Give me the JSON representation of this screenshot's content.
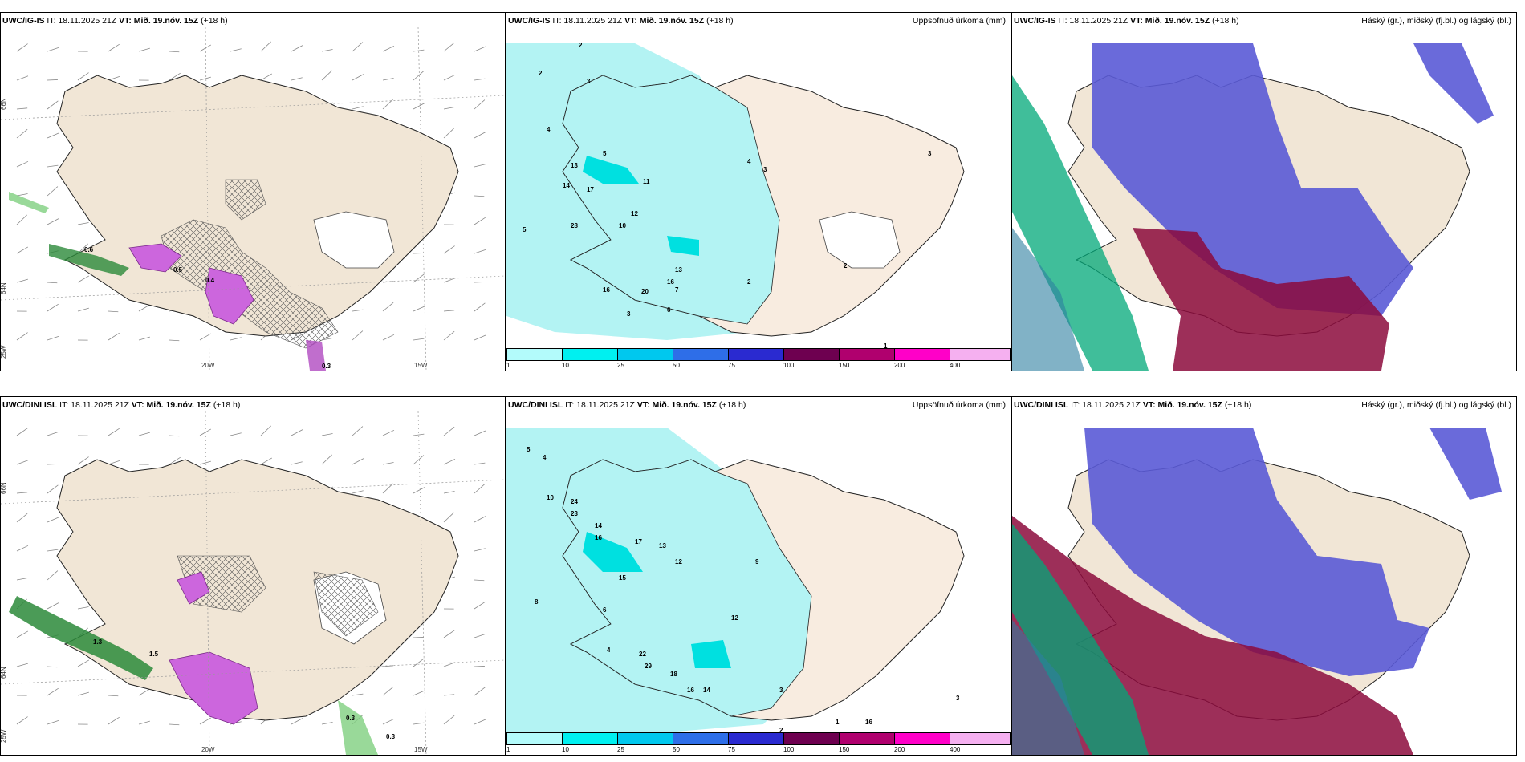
{
  "rows": [
    {
      "wind_panel": {
        "model": "UWC/IG-IS",
        "it": "IT: 18.11.2025 21Z",
        "vt_label": "VT: Mið. 19.nóv. 15Z",
        "lead": "(+18 h)"
      },
      "precip_panel": {
        "model": "UWC/IG-IS",
        "it": "IT: 18.11.2025 21Z",
        "vt_label": "VT: Mið. 19.nóv. 15Z",
        "lead": "(+18 h)",
        "right_title": "Uppsöfnuð úrkoma (mm)"
      },
      "cloud_panel": {
        "model": "UWC/IG-IS",
        "it": "IT: 18.11.2025 21Z",
        "vt_label": "VT: Mið. 19.nóv. 15Z",
        "lead": "(+18 h)",
        "right_title": "Háský (gr.), miðský (fj.bl.) og lágský (bl.)"
      },
      "wind_values": [
        "0.6",
        "0.4",
        "0.5",
        "0.3"
      ]
    },
    {
      "wind_panel": {
        "model": "UWC/DINI ISL",
        "it": "IT: 18.11.2025 21Z",
        "vt_label": "VT: Mið. 19.nóv. 15Z",
        "lead": "(+18 h)"
      },
      "precip_panel": {
        "model": "UWC/DINI ISL",
        "it": "IT: 18.11.2025 21Z",
        "vt_label": "VT: Mið. 19.nóv. 15Z",
        "lead": "(+18 h)",
        "right_title": "Uppsöfnuð úrkoma (mm)"
      },
      "cloud_panel": {
        "model": "UWC/DINI ISL",
        "it": "IT: 18.11.2025 21Z",
        "vt_label": "VT: Mið. 19.nóv. 15Z",
        "lead": "(+18 h)",
        "right_title": "Háský (gr.), miðský (fj.bl.) og lágský (bl.)"
      },
      "wind_values": [
        "1.3",
        "1.5",
        "0.3",
        "0.3"
      ]
    }
  ],
  "axis_labels": {
    "lat66": "66N",
    "lat64": "64N",
    "lon20": "20W",
    "lon15": "15W",
    "lon25": "25W"
  },
  "colorbar": {
    "ticks": [
      "1",
      "10",
      "25",
      "50",
      "75",
      "100",
      "150",
      "200",
      "400"
    ],
    "colors": [
      "#b3fbfb",
      "#00f0f0",
      "#00c8ee",
      "#2e6ee8",
      "#2a2ad0",
      "#6e0050",
      "#b0006e",
      "#ff00c8",
      "#f5b0f0"
    ]
  },
  "precip_values_top": [
    "2",
    "2",
    "3",
    "4",
    "5",
    "13",
    "14",
    "17",
    "28",
    "11",
    "12",
    "10",
    "5",
    "4",
    "3",
    "13",
    "16",
    "20",
    "16",
    "7",
    "6",
    "3",
    "2",
    "2",
    "1",
    "3"
  ],
  "precip_values_bottom": [
    "5",
    "4",
    "10",
    "24",
    "23",
    "14",
    "16",
    "17",
    "15",
    "13",
    "12",
    "9",
    "8",
    "6",
    "4",
    "22",
    "29",
    "18",
    "16",
    "14",
    "12",
    "3",
    "2",
    "16",
    "1",
    "3"
  ],
  "colors": {
    "land": "#f1e6d6",
    "sea": "#ffffff",
    "precip_light": "#b3f3f3",
    "cloud_high": "#5a5ad6",
    "cloud_mid": "#8c0a3c",
    "cloud_low": "#00a878"
  }
}
